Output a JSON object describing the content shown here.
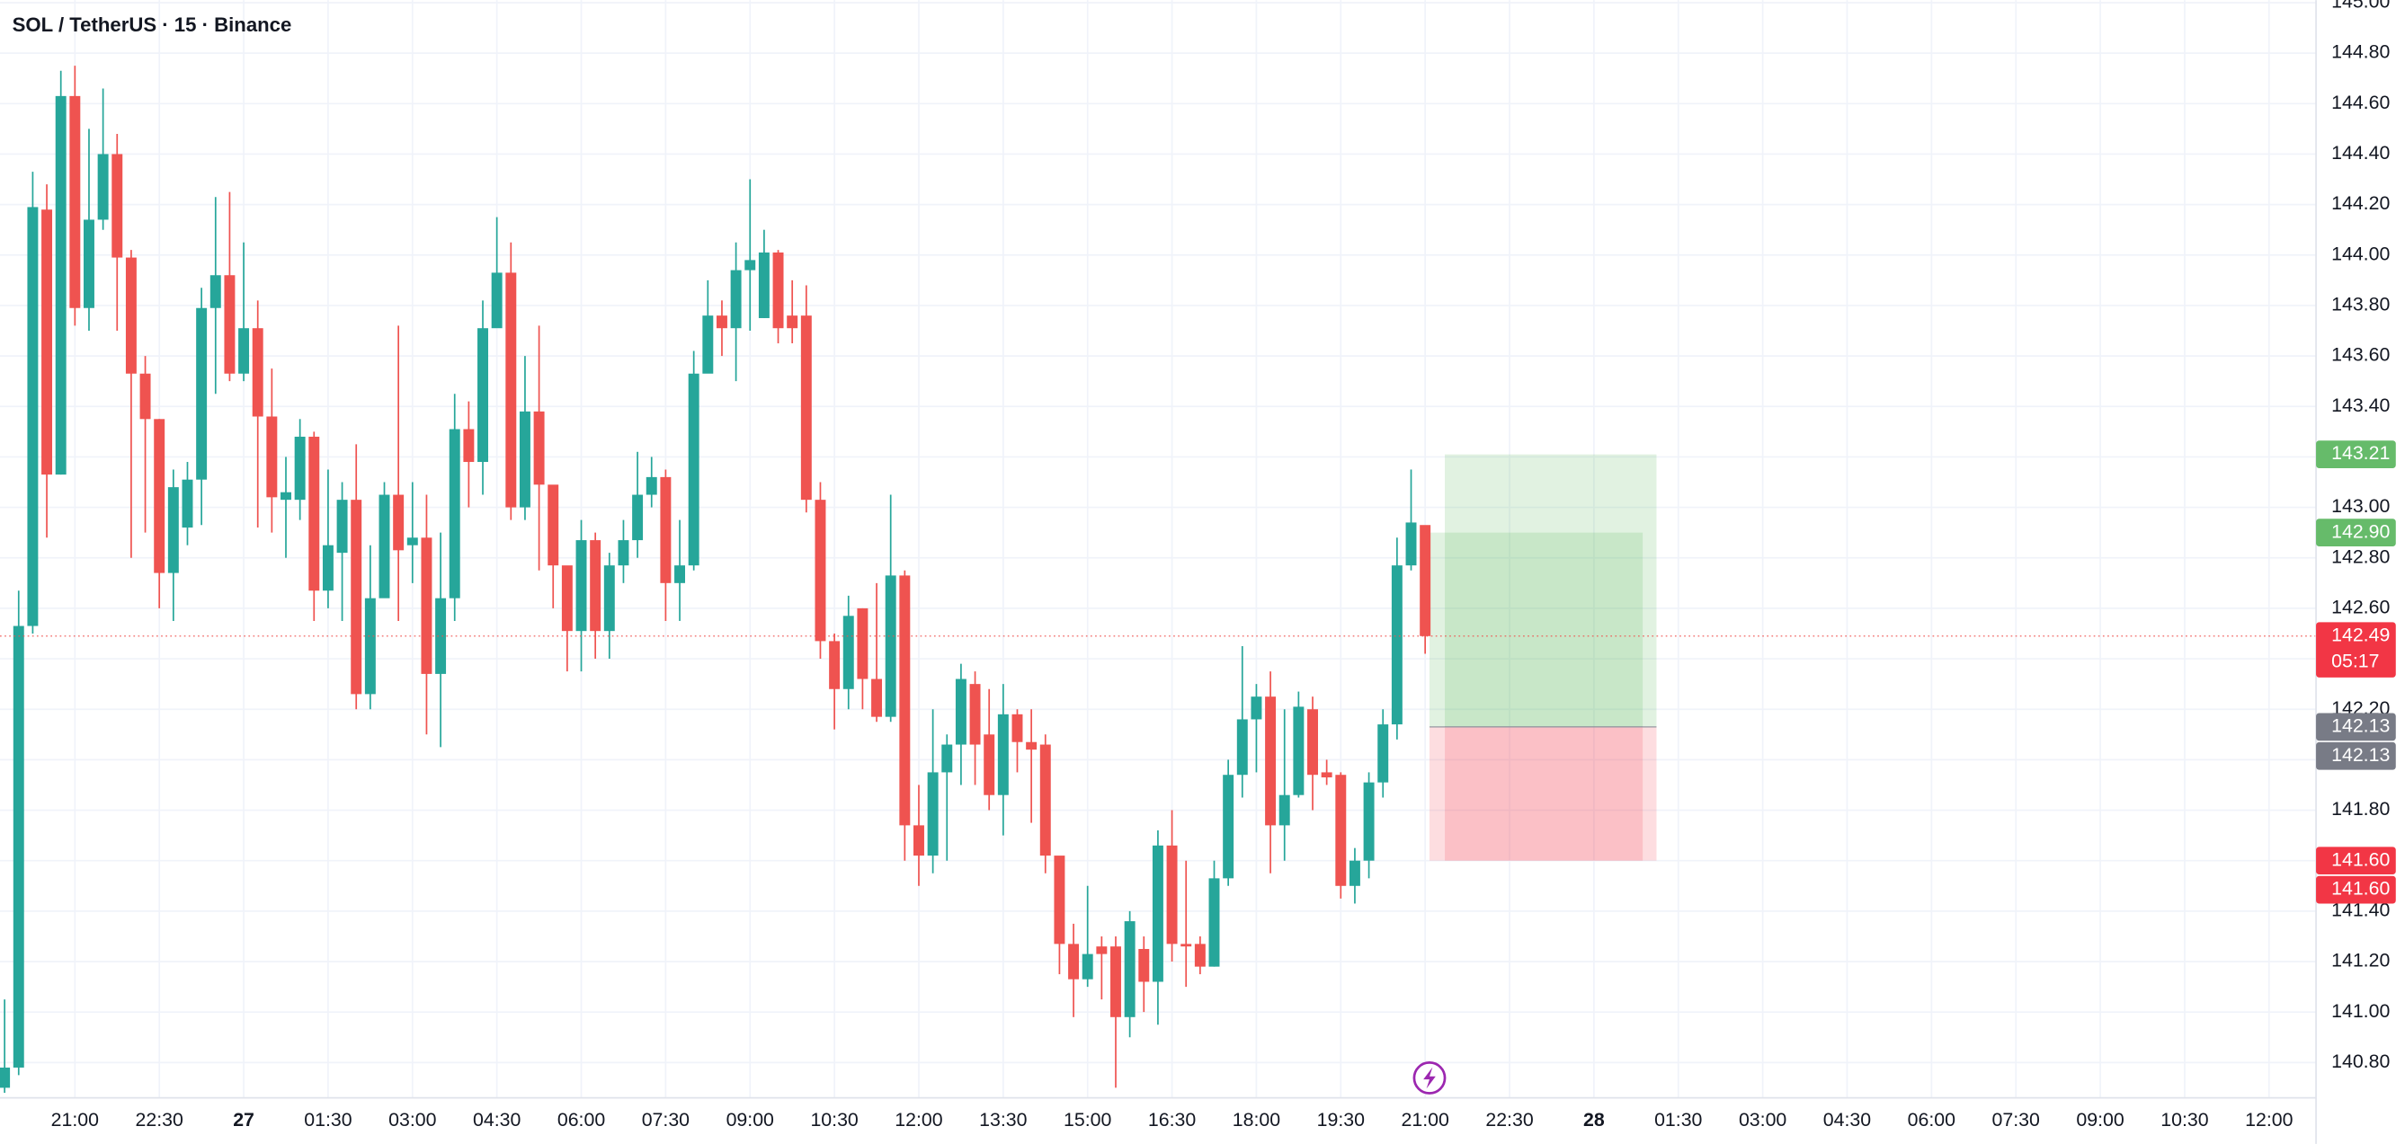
{
  "chart_data": {
    "type": "candlestick",
    "title": "SOL / TetherUS · 15 · Binance",
    "up_color": "#26a69a",
    "down_color": "#ef5350",
    "grid": true,
    "open": [
      140.7,
      140.78,
      142.53,
      144.18,
      143.13,
      144.63,
      143.79,
      144.14,
      144.4,
      143.99,
      143.53,
      143.35,
      142.74,
      142.92,
      143.11,
      143.79,
      143.92,
      143.53,
      143.71,
      143.36,
      143.03,
      143.03,
      143.28,
      142.67,
      142.82,
      143.03,
      142.26,
      142.64,
      143.05,
      142.85,
      142.88,
      142.34,
      142.64,
      143.31,
      143.18,
      143.71,
      143.93,
      143.0,
      143.38,
      143.09,
      142.77,
      142.51,
      142.87,
      142.51,
      142.77,
      142.87,
      143.05,
      143.12,
      142.7,
      142.77,
      143.53,
      143.76,
      143.71,
      143.94,
      143.75,
      144.01,
      143.76,
      143.76,
      143.03,
      142.47,
      142.28,
      142.6,
      142.32,
      142.17,
      142.73,
      141.74,
      141.62,
      141.95,
      142.06,
      142.3,
      142.1,
      141.86,
      142.18,
      142.07,
      142.06,
      141.62,
      141.27,
      141.13,
      141.26,
      141.26,
      140.98,
      141.25,
      141.12,
      141.66,
      141.27,
      141.27,
      141.18,
      141.53,
      141.94,
      142.16,
      142.25,
      141.74,
      141.86,
      142.2,
      141.95,
      141.94,
      141.5,
      141.6,
      141.91,
      142.14,
      142.77,
      142.93
    ],
    "high": [
      141.05,
      142.67,
      144.33,
      144.28,
      144.73,
      144.75,
      144.5,
      144.66,
      144.48,
      144.02,
      143.6,
      143.35,
      143.15,
      143.18,
      143.87,
      144.23,
      144.25,
      144.05,
      143.82,
      143.55,
      143.2,
      143.35,
      143.3,
      143.15,
      143.1,
      143.25,
      142.85,
      143.1,
      143.72,
      143.1,
      143.05,
      142.9,
      143.45,
      143.42,
      143.82,
      144.15,
      144.05,
      143.6,
      143.72,
      143.05,
      142.75,
      142.95,
      142.9,
      142.82,
      142.95,
      143.22,
      143.2,
      143.15,
      142.95,
      143.62,
      143.9,
      143.82,
      144.05,
      144.3,
      144.1,
      144.02,
      143.9,
      143.88,
      143.1,
      142.5,
      142.65,
      142.6,
      142.7,
      143.05,
      142.75,
      141.9,
      142.2,
      142.1,
      142.38,
      142.35,
      142.28,
      142.3,
      142.2,
      142.2,
      142.1,
      141.6,
      141.35,
      141.5,
      141.3,
      141.3,
      141.4,
      141.3,
      141.72,
      141.8,
      141.6,
      141.3,
      141.6,
      142.0,
      142.45,
      142.3,
      142.35,
      142.2,
      142.27,
      142.25,
      142.0,
      141.95,
      141.65,
      141.95,
      142.2,
      142.88,
      143.15,
      142.92
    ],
    "low": [
      140.68,
      140.75,
      142.5,
      142.88,
      143.13,
      143.72,
      143.7,
      144.1,
      143.7,
      142.8,
      142.9,
      142.6,
      142.55,
      142.85,
      142.93,
      143.45,
      143.5,
      143.5,
      142.92,
      142.9,
      142.8,
      142.95,
      142.55,
      142.6,
      142.55,
      142.2,
      142.2,
      142.65,
      142.55,
      142.7,
      142.1,
      142.05,
      142.55,
      143.0,
      143.05,
      143.75,
      142.95,
      142.95,
      142.75,
      142.6,
      142.35,
      142.35,
      142.4,
      142.4,
      142.7,
      142.8,
      143.0,
      142.55,
      142.55,
      142.75,
      143.55,
      143.6,
      143.5,
      143.7,
      143.75,
      143.65,
      143.65,
      142.98,
      142.4,
      142.12,
      142.2,
      142.2,
      142.15,
      142.15,
      141.6,
      141.5,
      141.55,
      141.6,
      141.9,
      141.9,
      141.8,
      141.7,
      141.95,
      141.75,
      141.55,
      141.15,
      140.98,
      141.1,
      141.05,
      140.7,
      140.9,
      141.0,
      140.95,
      141.2,
      141.1,
      141.15,
      141.18,
      141.5,
      141.85,
      141.95,
      141.55,
      141.6,
      141.85,
      141.8,
      141.9,
      141.45,
      141.43,
      141.53,
      141.85,
      142.08,
      142.75,
      142.42
    ],
    "close": [
      140.78,
      142.53,
      144.19,
      143.13,
      144.63,
      143.79,
      144.14,
      144.4,
      143.99,
      143.53,
      143.35,
      142.74,
      143.08,
      143.11,
      143.79,
      143.92,
      143.53,
      143.71,
      143.36,
      143.04,
      143.06,
      143.28,
      142.67,
      142.85,
      143.03,
      142.26,
      142.64,
      143.05,
      142.83,
      142.88,
      142.34,
      142.64,
      143.31,
      143.18,
      143.71,
      143.93,
      143.0,
      143.38,
      143.09,
      142.77,
      142.51,
      142.87,
      142.51,
      142.77,
      142.87,
      143.05,
      143.12,
      142.7,
      142.77,
      143.53,
      143.76,
      143.71,
      143.94,
      143.98,
      144.01,
      143.71,
      143.71,
      143.03,
      142.47,
      142.28,
      142.57,
      142.32,
      142.17,
      142.73,
      141.74,
      141.62,
      141.95,
      142.06,
      142.32,
      142.06,
      141.86,
      142.18,
      142.07,
      142.04,
      141.62,
      141.27,
      141.13,
      141.23,
      141.23,
      140.98,
      141.36,
      141.12,
      141.66,
      141.27,
      141.26,
      141.18,
      141.53,
      141.94,
      142.16,
      142.25,
      141.74,
      141.86,
      142.21,
      141.94,
      141.93,
      141.5,
      141.6,
      141.91,
      142.14,
      142.77,
      142.94,
      142.49
    ],
    "ylim": [
      140.66,
      145.01
    ],
    "yticks": [
      {
        "value": 140.8,
        "label": "140.80"
      },
      {
        "value": 141.0,
        "label": "141.00"
      },
      {
        "value": 141.2,
        "label": "141.20"
      },
      {
        "value": 141.4,
        "label": "141.40"
      },
      {
        "value": 141.6,
        "label": "141.60"
      },
      {
        "value": 141.8,
        "label": "141.80"
      },
      {
        "value": 142.0,
        "label": "142.00"
      },
      {
        "value": 142.2,
        "label": "142.20"
      },
      {
        "value": 142.4,
        "label": "142.40"
      },
      {
        "value": 142.6,
        "label": "142.60"
      },
      {
        "value": 142.8,
        "label": "142.80"
      },
      {
        "value": 143.0,
        "label": "143.00"
      },
      {
        "value": 143.2,
        "label": "143.20"
      },
      {
        "value": 143.4,
        "label": "143.40"
      },
      {
        "value": 143.6,
        "label": "143.60"
      },
      {
        "value": 143.8,
        "label": "143.80"
      },
      {
        "value": 144.0,
        "label": "144.00"
      },
      {
        "value": 144.2,
        "label": "144.20"
      },
      {
        "value": 144.4,
        "label": "144.40"
      },
      {
        "value": 144.6,
        "label": "144.60"
      },
      {
        "value": 144.8,
        "label": "144.80"
      },
      {
        "value": 145.0,
        "label": "145.00"
      }
    ],
    "xticks": [
      "21:00",
      "22:30",
      "27",
      "01:30",
      "03:00",
      "04:30",
      "06:00",
      "07:30",
      "09:00",
      "10:30",
      "12:00",
      "13:30",
      "15:00",
      "16:30",
      "18:00",
      "19:30",
      "21:00",
      "22:30",
      "28",
      "01:30",
      "03:00",
      "04:30",
      "06:00",
      "07:30",
      "09:00",
      "10:30",
      "12:00"
    ],
    "current_price": 142.49,
    "countdown": "05:17",
    "positions": [
      {
        "target": {
          "value": 143.21,
          "label": "143.21"
        },
        "entry": {
          "value": 142.13,
          "label": "142.13"
        },
        "stop": {
          "value": 141.6,
          "label": "141.60"
        }
      },
      {
        "target": {
          "value": 142.9,
          "label": "142.90"
        },
        "entry": {
          "value": 142.13,
          "label": "142.13"
        },
        "stop": {
          "value": 141.6,
          "label": "141.60"
        }
      }
    ]
  }
}
